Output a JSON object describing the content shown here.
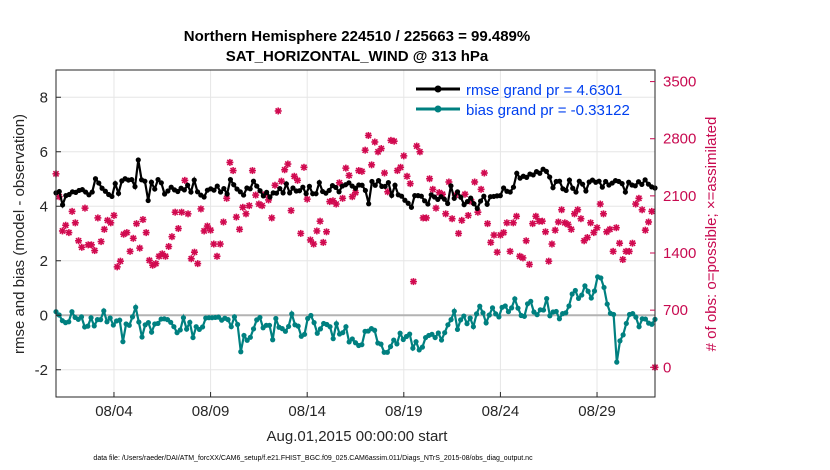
{
  "chart_data": {
    "type": "line",
    "title": "Northern Hemisphere 224510 / 225663 = 99.489%",
    "subtitle": "SAT_HORIZONTAL_WIND @ 313 hPa",
    "xlabel": "Aug.01,2015 00:00:00 start",
    "ylabel": "rmse and bias (model - observation)",
    "y2label": "# of obs: o=possible; ×=assimilated",
    "footnote": "data file: /Users/raeder/DAI/ATM_forcXX/CAM6_setup/f.e21.FHIST_BGC.f09_025.CAM6assim.011/Diags_NTrS_2015-08/obs_diag_output.nc",
    "xlim": [
      1.0,
      32.0
    ],
    "ylim": [
      -3,
      9
    ],
    "y2lim": [
      -364,
      3642
    ],
    "x_ticks": [
      4,
      9,
      14,
      19,
      24,
      29
    ],
    "x_tick_labels": [
      "08/04",
      "08/09",
      "08/14",
      "08/19",
      "08/24",
      "08/29"
    ],
    "y_ticks": [
      -2,
      0,
      2,
      4,
      6,
      8
    ],
    "y_tick_labels": [
      "-2",
      "0",
      "2",
      "4",
      "6",
      "8"
    ],
    "y2_ticks": [
      0,
      700,
      1400,
      2100,
      2800,
      3500
    ],
    "y2_tick_labels": [
      "0",
      "700",
      "1400",
      "2100",
      "2800",
      "3500"
    ],
    "grid": true,
    "legend_position": "top-right",
    "zero_line": 0,
    "series": [
      {
        "name": "rmse grand pr = 4.6301",
        "color": "#000000",
        "marker": "circle",
        "values": [
          4.49,
          4.54,
          4.05,
          4.39,
          4.43,
          4.53,
          4.51,
          4.58,
          4.61,
          4.52,
          4.42,
          4.52,
          5.01,
          4.85,
          4.66,
          4.55,
          4.43,
          4.36,
          4.83,
          4.47,
          4.93,
          5.01,
          4.96,
          4.98,
          4.72,
          5.7,
          4.97,
          4.92,
          4.21,
          4.88,
          4.63,
          4.98,
          4.86,
          4.45,
          4.56,
          4.7,
          4.6,
          4.54,
          4.66,
          4.6,
          4.77,
          4.52,
          4.96,
          4.53,
          4.41,
          4.34,
          4.59,
          4.64,
          4.59,
          4.74,
          4.52,
          4.65,
          4.45,
          4.98,
          4.79,
          4.63,
          4.53,
          4.41,
          4.67,
          4.64,
          4.92,
          4.74,
          4.57,
          4.38,
          4.51,
          4.34,
          4.49,
          4.48,
          4.65,
          4.49,
          4.82,
          4.49,
          4.67,
          4.56,
          4.57,
          4.7,
          4.46,
          4.73,
          4.46,
          4.46,
          4.87,
          4.54,
          4.48,
          4.58,
          4.76,
          4.69,
          4.53,
          4.74,
          4.79,
          4.86,
          4.74,
          4.66,
          4.78,
          4.77,
          4.58,
          4.09,
          4.91,
          4.77,
          4.94,
          4.73,
          4.73,
          4.87,
          4.4,
          4.77,
          4.42,
          4.37,
          4.22,
          4.11,
          3.96,
          4.39,
          4.39,
          4.37,
          4.2,
          4.08,
          4.42,
          4.34,
          4.25,
          4.35,
          4.26,
          4.1,
          4.75,
          4.29,
          4.53,
          4.33,
          4.06,
          4.17,
          4.3,
          4.09,
          3.92,
          4.19,
          4.37,
          4.07,
          4.35,
          4.36,
          4.38,
          4.39,
          4.67,
          4.55,
          4.52,
          4.7,
          5.21,
          5.03,
          5.1,
          5.06,
          5.18,
          5.15,
          5.27,
          5.21,
          5.36,
          5.28,
          5.07,
          4.68,
          4.91,
          4.92,
          4.64,
          4.58,
          4.96,
          4.66,
          4.52,
          4.92,
          4.81,
          4.56,
          4.89,
          4.96,
          4.88,
          4.92,
          4.7,
          4.91,
          4.78,
          4.85,
          4.94,
          4.91,
          4.83,
          4.52,
          4.88,
          4.78,
          4.75,
          4.9,
          4.8,
          4.97,
          4.81,
          4.71,
          4.67
        ]
      },
      {
        "name": "bias grand pr = -0.33122",
        "color": "#008080",
        "marker": "circle",
        "values": [
          0.13,
          0.01,
          -0.2,
          -0.27,
          -0.24,
          0.13,
          -0.08,
          -0.15,
          -0.06,
          -0.43,
          -0.4,
          -0.09,
          -0.39,
          -0.16,
          -0.16,
          0.16,
          -0.24,
          -0.1,
          -0.36,
          -0.21,
          -0.18,
          -0.97,
          -0.32,
          -0.37,
          -0.06,
          0.29,
          -0.25,
          -0.8,
          -0.35,
          -0.27,
          -0.62,
          -0.32,
          -0.3,
          -0.14,
          -0.13,
          -0.16,
          -0.26,
          -0.42,
          -0.64,
          -0.54,
          -0.09,
          -0.51,
          -0.26,
          -0.82,
          -0.42,
          -0.52,
          -0.43,
          -0.1,
          -0.09,
          -0.09,
          -0.08,
          -0.07,
          -0.18,
          -0.11,
          -0.16,
          -0.42,
          -0.06,
          -0.34,
          -1.34,
          -0.74,
          -0.92,
          -0.81,
          -0.5,
          -0.17,
          -0.08,
          -0.46,
          -0.37,
          -0.37,
          -0.9,
          -0.12,
          -0.44,
          -0.49,
          -0.59,
          -0.41,
          0.05,
          -0.35,
          -0.4,
          -0.77,
          -0.7,
          -0.12,
          -0.01,
          -0.27,
          -0.66,
          -0.5,
          -0.3,
          -0.34,
          -0.42,
          -0.86,
          -0.31,
          -0.69,
          -0.64,
          -0.42,
          -0.98,
          -0.87,
          -1.01,
          -1.11,
          -1.08,
          -0.59,
          -0.58,
          -0.49,
          -0.55,
          -1.02,
          -1.06,
          -1.36,
          -1.36,
          -1.15,
          -0.91,
          -1.05,
          -0.66,
          -0.89,
          -0.78,
          -0.69,
          -1.21,
          -0.97,
          -1.27,
          -1.17,
          -0.82,
          -0.74,
          -0.7,
          -0.82,
          -0.65,
          -0.91,
          -0.64,
          -0.35,
          -0.16,
          0.15,
          -0.52,
          -0.17,
          -0.03,
          -0.31,
          -0.1,
          -0.42,
          0.05,
          0.33,
          0.09,
          -0.28,
          0.01,
          0.27,
          0.05,
          -0.06,
          0.29,
          0.34,
          0.13,
          0.27,
          0.6,
          0.26,
          -0.01,
          -0.04,
          0.42,
          0.51,
          0.12,
          0.02,
          0.2,
          0.19,
          0.61,
          -0.02,
          0.12,
          0.14,
          -0.13,
          0.06,
          0.09,
          0.34,
          0.78,
          0.91,
          0.62,
          0.74,
          1.08,
          0.88,
          0.63,
          0.89,
          1.41,
          1.37,
          1.02,
          0.41,
          0.07,
          0.03,
          -1.72,
          -0.94,
          -0.72,
          -0.3,
          0.03,
          0.06,
          -0.07,
          -0.42,
          -0.13,
          -0.14,
          -0.29,
          -0.33,
          -0.15
        ]
      },
      {
        "name": "obs assimilated",
        "color": "#d10a50",
        "marker": "asterisk",
        "values": [
          2370,
          2090,
          1670,
          1740,
          1650,
          1910,
          1770,
          1550,
          1470,
          1950,
          1500,
          1500,
          1430,
          1830,
          1540,
          1690,
          1800,
          1770,
          1860,
          1230,
          1300,
          1630,
          1650,
          1420,
          1580,
          1760,
          1460,
          1810,
          1650,
          1310,
          1250,
          1270,
          1360,
          1390,
          1360,
          1480,
          1600,
          1900,
          1700,
          1900,
          2290,
          1880,
          1330,
          1410,
          1270,
          1940,
          1670,
          1730,
          1680,
          1510,
          1360,
          1510,
          1780,
          2070,
          2510,
          2410,
          1840,
          1690,
          1960,
          1880,
          1980,
          2410,
          2110,
          2000,
          1980,
          2120,
          2050,
          1830,
          2230,
          3140,
          2280,
          2420,
          2490,
          1920,
          2340,
          2290,
          1640,
          2450,
          2060,
          1560,
          1510,
          1670,
          1790,
          1530,
          1660,
          2030,
          2040,
          2000,
          2260,
          2070,
          2440,
          2350,
          2090,
          2140,
          2410,
          2400,
          2660,
          2840,
          2480,
          2760,
          2640,
          2680,
          2380,
          2150,
          2780,
          2770,
          2410,
          2450,
          2590,
          2340,
          2250,
          1050,
          2710,
          2640,
          1830,
          1830,
          2310,
          2180,
          1950,
          2140,
          2120,
          1880,
          2270,
          1820,
          2110,
          1640,
          1800,
          2120,
          1860,
          2030,
          2270,
          1900,
          2180,
          2380,
          1760,
          1530,
          1620,
          1410,
          1620,
          1650,
          1770,
          1420,
          1770,
          1850,
          1360,
          1340,
          1550,
          1260,
          1760,
          1850,
          1790,
          1790,
          1660,
          1300,
          1510,
          1680,
          1780,
          1930,
          1770,
          1750,
          1690,
          1880,
          1930,
          1820,
          1550,
          1590,
          1770,
          1650,
          1710,
          2000,
          1880,
          1660,
          1690,
          1420,
          1710,
          1520,
          1320,
          1420,
          1420,
          1520,
          2000,
          2070,
          1930,
          1680,
          1780,
          1910,
          0
        ]
      }
    ]
  }
}
